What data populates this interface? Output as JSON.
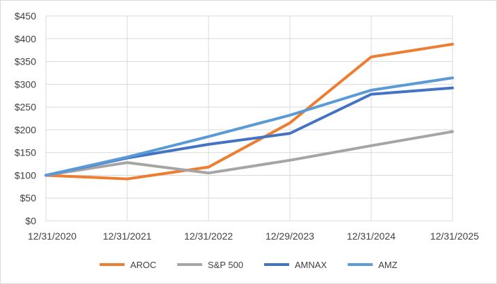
{
  "chart_data": {
    "type": "line",
    "title": "",
    "xlabel": "",
    "ylabel": "",
    "x": [
      "12/31/2020",
      "12/31/2021",
      "12/31/2022",
      "12/29/2023",
      "12/31/2024",
      "12/31/2025"
    ],
    "ylim": [
      0,
      450
    ],
    "y_tick_step": 50,
    "y_tick_prefix": "$",
    "grid": true,
    "legend_position": "bottom",
    "series": [
      {
        "name": "AROC",
        "color": "#ED7D31",
        "values": [
          100,
          92,
          118,
          215,
          360,
          388
        ]
      },
      {
        "name": "S&P 500",
        "color": "#A5A5A5",
        "values": [
          100,
          128,
          105,
          133,
          165,
          196
        ]
      },
      {
        "name": "AMNAX",
        "color": "#4472C4",
        "values": [
          100,
          138,
          168,
          192,
          278,
          292
        ]
      },
      {
        "name": "AMZ",
        "color": "#5B9BD5",
        "values": [
          100,
          140,
          185,
          232,
          287,
          314
        ]
      }
    ]
  }
}
